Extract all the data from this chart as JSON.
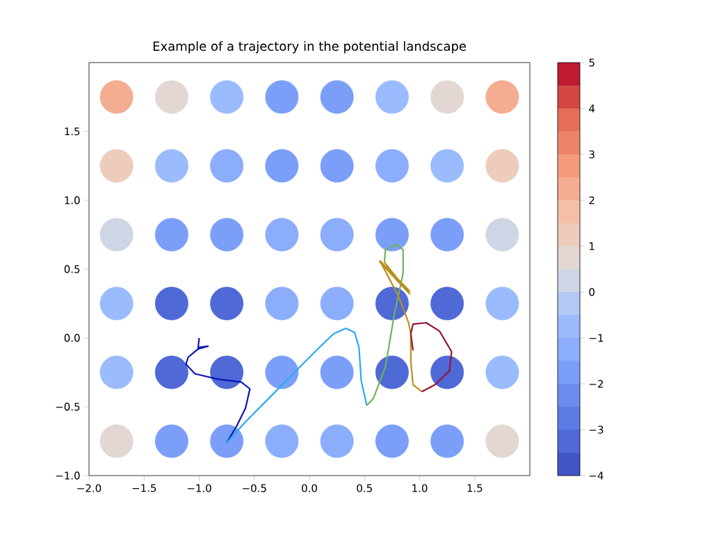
{
  "chart_data": {
    "type": "scatter",
    "title": "Example of a trajectory in the potential landscape",
    "clim": [
      -4,
      5
    ],
    "cticks": [
      {
        "value": -4,
        "label": "−4"
      },
      {
        "value": -3,
        "label": "−3"
      },
      {
        "value": -2,
        "label": "−2"
      },
      {
        "value": -1,
        "label": "−1"
      },
      0,
      1,
      2,
      3,
      4,
      5
    ],
    "xlim": [
      -2,
      2
    ],
    "ylim": [
      -1,
      2
    ],
    "xticks": [
      {
        "value": -2,
        "label": "−2.0"
      },
      {
        "value": -1.5,
        "label": "−1.5"
      },
      {
        "value": -1,
        "label": "−1.0"
      },
      {
        "value": -0.5,
        "label": "−0.5"
      },
      {
        "value": 0,
        "label": "0.0"
      },
      {
        "value": 0.5,
        "label": "0.5"
      },
      {
        "value": 1,
        "label": "1.0"
      },
      {
        "value": 1.5,
        "label": "1.5"
      }
    ],
    "yticks": [
      {
        "value": -1,
        "label": "−1.0"
      },
      {
        "value": -0.5,
        "label": "−0.5"
      },
      {
        "value": 0,
        "label": "0.0"
      },
      {
        "value": 0.5,
        "label": "0.5"
      },
      {
        "value": 1,
        "label": "1.0"
      },
      {
        "value": 1.5,
        "label": "1.5"
      }
    ],
    "series": [
      {
        "marker": "circle",
        "colors": [
          "#f4ad91",
          "#e2d7d2",
          "#9abbfe",
          "#7b9ff9",
          "#7b9ff9",
          "#9abbfe",
          "#e2d7d2",
          "#f4ad91",
          "#edccbc",
          "#9abbfe",
          "#8badfc",
          "#7b9ff9",
          "#7b9ff9",
          "#8badfc",
          "#9abbfe",
          "#edccbc",
          "#ced6e5",
          "#7b9ff9",
          "#7b9ff9",
          "#8badfc",
          "#8badfc",
          "#7b9ff9",
          "#7b9ff9",
          "#ced6e5",
          "#9abbfe",
          "#4f69d7",
          "#4f69d7",
          "#8badfc",
          "#8badfc",
          "#4f69d7",
          "#4f69d7",
          "#9abbfe",
          "#9abbfe",
          "#4f69d7",
          "#4f69d7",
          "#7b9ff9",
          "#7b9ff9",
          "#4f69d7",
          "#4f69d7",
          "#9abbfe",
          "#e2d7d2",
          "#7b9ff9",
          "#7b9ff9",
          "#8badfc",
          "#8badfc",
          "#7b9ff9",
          "#7b9ff9",
          "#e2d7d2"
        ],
        "x": [
          -1.75,
          -1.25,
          -0.75,
          -0.25,
          0.25,
          0.75,
          1.25,
          1.75,
          -1.75,
          -1.25,
          -0.75,
          -0.25,
          0.25,
          0.75,
          1.25,
          1.75,
          -1.75,
          -1.25,
          -0.75,
          -0.25,
          0.25,
          0.75,
          1.25,
          1.75,
          -1.75,
          -1.25,
          -0.75,
          -0.25,
          0.25,
          0.75,
          1.25,
          1.75,
          -1.75,
          -1.25,
          -0.75,
          -0.25,
          0.25,
          0.75,
          1.25,
          1.75,
          -1.75,
          -1.25,
          -0.75,
          -0.25,
          0.25,
          0.75,
          1.25,
          1.75
        ],
        "values": [
          1.75,
          1.75,
          1.75,
          1.75,
          1.75,
          1.75,
          1.75,
          1.75,
          1.25,
          1.25,
          1.25,
          1.25,
          1.25,
          1.25,
          1.25,
          1.25,
          0.75,
          0.75,
          0.75,
          0.75,
          0.75,
          0.75,
          0.75,
          0.75,
          0.25,
          0.25,
          0.25,
          0.25,
          0.25,
          0.25,
          0.25,
          0.25,
          -0.25,
          -0.25,
          -0.25,
          -0.25,
          -0.25,
          -0.25,
          -0.25,
          -0.25,
          -0.75,
          -0.75,
          -0.75,
          -0.75,
          -0.75,
          -0.75,
          -0.75,
          -0.75
        ],
        "cvalues": [
          2.4,
          0.5,
          -0.8,
          -1.8,
          -1.8,
          -0.8,
          0.5,
          2.4,
          1.4,
          -0.6,
          -1.5,
          -1.8,
          -1.8,
          -1.5,
          -0.6,
          1.4,
          0.3,
          -1.9,
          -2.0,
          -1.1,
          -1.1,
          -2.0,
          -1.9,
          0.3,
          -0.7,
          -3.4,
          -3.1,
          -1.2,
          -1.2,
          -3.1,
          -3.4,
          -0.7,
          -0.7,
          -3.5,
          -3.4,
          -1.7,
          -1.7,
          -3.4,
          -3.5,
          -0.7,
          0.6,
          -1.7,
          -1.9,
          -1.1,
          -1.1,
          -1.9,
          -1.7,
          0.6
        ]
      },
      {
        "type": "line",
        "color": "#0a14b4",
        "x": [
          -1.0,
          -1.01,
          -0.92,
          -1.01,
          -1.1,
          -1.12,
          -1.04,
          -0.83,
          -0.62,
          -0.54,
          -0.58,
          -0.66,
          -0.75
        ],
        "values": [
          0.0,
          -0.07,
          -0.06,
          -0.08,
          -0.14,
          -0.19,
          -0.26,
          -0.3,
          -0.32,
          -0.37,
          -0.51,
          -0.64,
          -0.76
        ]
      },
      {
        "type": "line",
        "color": "#2aa8f0",
        "x": [
          -0.75,
          -0.58,
          -0.37,
          -0.16,
          0.05,
          0.22,
          0.33,
          0.41,
          0.45,
          0.47,
          0.52
        ],
        "values": [
          -0.76,
          -0.61,
          -0.44,
          -0.27,
          -0.1,
          0.03,
          0.07,
          0.04,
          -0.07,
          -0.31,
          -0.49
        ]
      },
      {
        "type": "line",
        "color": "#6cb45a",
        "x": [
          0.52,
          0.58,
          0.69,
          0.77,
          0.85,
          0.85,
          0.79,
          0.69,
          0.68
        ],
        "values": [
          -0.49,
          -0.44,
          -0.21,
          0.17,
          0.47,
          0.64,
          0.68,
          0.64,
          0.55
        ]
      },
      {
        "type": "line",
        "color": "#b8901e",
        "x": [
          0.68,
          0.91,
          0.64,
          0.91,
          0.64,
          0.81,
          0.9,
          0.92,
          0.92,
          0.94,
          1.02
        ],
        "values": [
          0.55,
          0.32,
          0.55,
          0.34,
          0.56,
          0.3,
          0.11,
          0.03,
          -0.17,
          -0.34,
          -0.39
        ]
      },
      {
        "type": "line",
        "color": "#961432",
        "x": [
          1.02,
          1.14,
          1.27,
          1.29,
          1.18,
          1.06,
          0.94,
          0.92,
          0.94
        ],
        "values": [
          -0.39,
          -0.34,
          -0.24,
          -0.1,
          0.05,
          0.11,
          0.1,
          0.03,
          -0.09
        ]
      }
    ]
  }
}
